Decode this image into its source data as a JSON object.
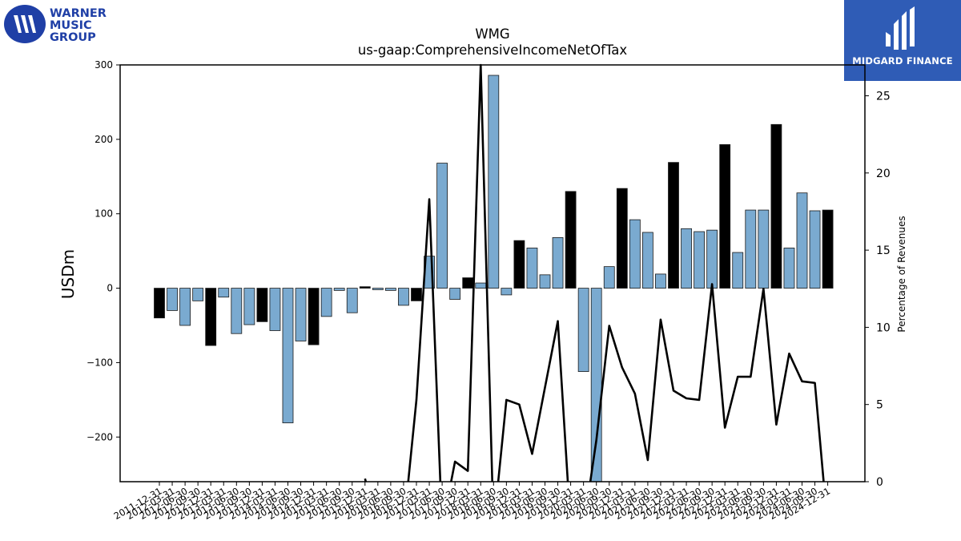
{
  "logos": {
    "left": {
      "lines": [
        "WARNER",
        "MUSIC",
        "GROUP"
      ]
    },
    "right": {
      "text": "MIDGARD FINANCE"
    }
  },
  "chart_data": {
    "type": "bar",
    "title": "WMG",
    "subtitle": "us-gaap:ComprehensiveIncomeNetOfTax",
    "ylabel": "USDm",
    "y2label": "Percentage of Revenues",
    "ylim": [
      -260,
      300
    ],
    "y2lim": [
      0,
      27
    ],
    "yticks": [
      -200,
      -100,
      0,
      100,
      200,
      300
    ],
    "y2ticks": [
      0,
      5,
      10,
      15,
      20,
      25
    ],
    "colors": {
      "quarter": "#7aaad0",
      "annual": "#000000",
      "line": "#000000"
    },
    "categories": [
      "2011-12-31",
      "2012-03-31",
      "2012-06-30",
      "2012-09-30",
      "2012-12-31",
      "2013-03-31",
      "2013-06-30",
      "2013-09-30",
      "2013-12-31",
      "2014-03-31",
      "2014-06-30",
      "2014-09-30",
      "2014-12-31",
      "2015-03-31",
      "2015-06-30",
      "2015-09-30",
      "2015-12-31",
      "2016-03-31",
      "2016-06-30",
      "2016-09-30",
      "2016-12-31",
      "2017-03-31",
      "2017-06-30",
      "2017-09-30",
      "2017-12-31",
      "2018-03-31",
      "2018-06-30",
      "2018-09-30",
      "2018-12-31",
      "2019-03-31",
      "2019-06-30",
      "2019-09-30",
      "2019-12-31",
      "2020-03-31",
      "2020-06-30",
      "2020-09-30",
      "2020-12-31",
      "2021-03-31",
      "2021-06-30",
      "2021-09-30",
      "2021-12-31",
      "2022-03-31",
      "2022-06-30",
      "2022-09-30",
      "2022-12-31",
      "2023-03-31",
      "2023-06-30",
      "2023-09-30",
      "2023-12-31",
      "2024-03-31",
      "2024-06-30",
      "2024-09-30",
      "2024-12-31"
    ],
    "series": [
      {
        "values": [
          -40,
          -30,
          -50,
          -17,
          -77,
          -12,
          -61,
          -49,
          -45,
          -57,
          -181,
          -71,
          -76,
          -38,
          -3,
          -33,
          2,
          -2,
          -3,
          -23,
          -17,
          43,
          168,
          -15,
          14,
          7,
          286,
          -9,
          64,
          54,
          18,
          68,
          130,
          -112,
          -260,
          29,
          134,
          92,
          75,
          19,
          169,
          80,
          76,
          78,
          193,
          48,
          105,
          105,
          220,
          54,
          128,
          104,
          105
        ]
      }
    ],
    "bar_type": [
      "annual",
      "quarter",
      "quarter",
      "quarter",
      "annual",
      "quarter",
      "quarter",
      "quarter",
      "annual",
      "quarter",
      "quarter",
      "quarter",
      "annual",
      "quarter",
      "quarter",
      "quarter",
      "annual",
      "quarter",
      "quarter",
      "quarter",
      "annual",
      "quarter",
      "quarter",
      "quarter",
      "annual",
      "quarter",
      "quarter",
      "quarter",
      "annual",
      "quarter",
      "quarter",
      "quarter",
      "annual",
      "quarter",
      "quarter",
      "quarter",
      "annual",
      "quarter",
      "quarter",
      "quarter",
      "annual",
      "quarter",
      "quarter",
      "quarter",
      "annual",
      "quarter",
      "quarter",
      "quarter",
      "annual",
      "quarter",
      "quarter",
      "quarter",
      "annual"
    ],
    "line": [
      null,
      null,
      null,
      null,
      null,
      null,
      null,
      null,
      null,
      null,
      null,
      null,
      null,
      null,
      null,
      null,
      0.2,
      null,
      null,
      null,
      5.3,
      18.3,
      null,
      1.3,
      0.7,
      27.0,
      null,
      5.3,
      5.0,
      1.8,
      6.1,
      10.4,
      null,
      null,
      2.7,
      10.1,
      7.4,
      5.7,
      1.4,
      10.5,
      5.9,
      5.4,
      5.3,
      12.8,
      3.5,
      6.8,
      6.8,
      12.5,
      3.7,
      8.3,
      6.5,
      6.4,
      null
    ]
  }
}
